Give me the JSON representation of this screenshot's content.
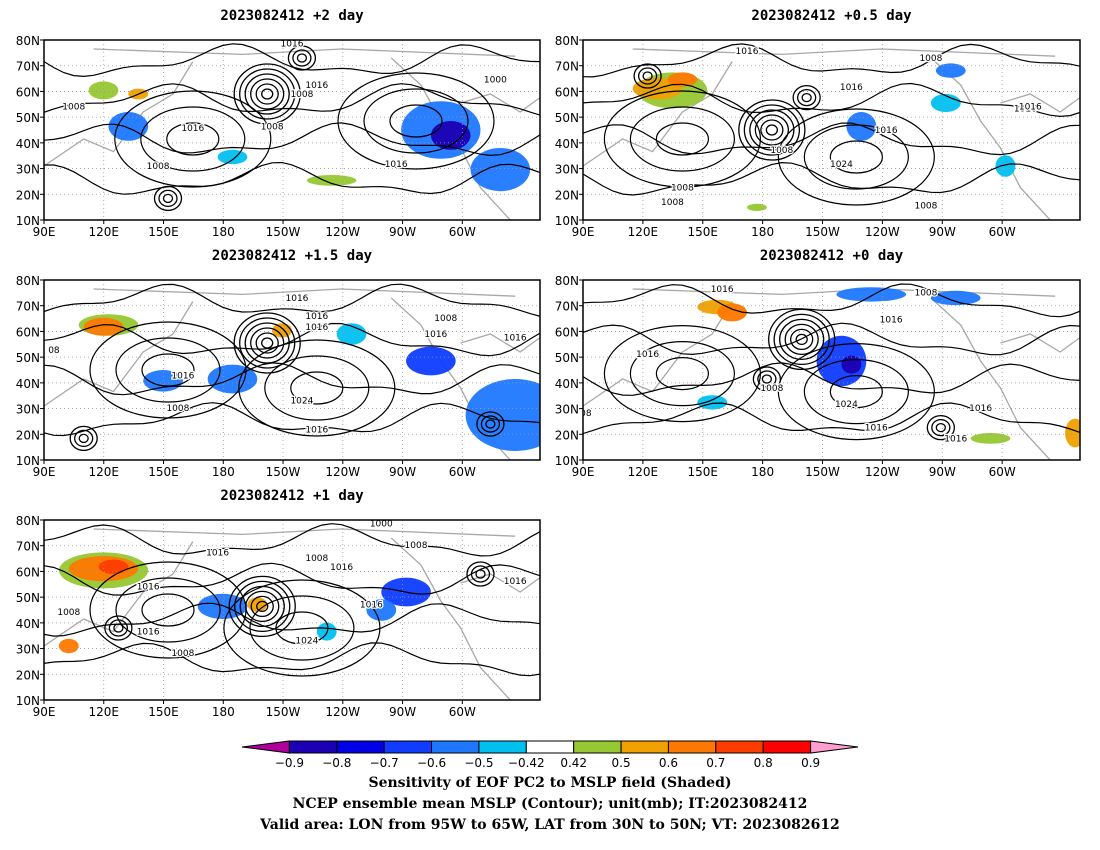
{
  "panels": [
    {
      "title": "2023082412 +2 day",
      "lat_ticks": [
        "80N",
        "70N",
        "60N",
        "50N",
        "40N",
        "30N",
        "20N",
        "10N"
      ],
      "lon_ticks": [
        "90E",
        "120E",
        "150E",
        "180",
        "150W",
        "120W",
        "90W",
        "60W"
      ],
      "contour_labels": [
        "1016",
        "1016",
        "1008",
        "1000",
        "1008",
        "1016",
        "1008",
        "1008",
        "1016"
      ]
    },
    {
      "title": "2023082412 +0.5 day",
      "lat_ticks": [
        "80N",
        "70N",
        "60N",
        "50N",
        "40N",
        "30N",
        "20N",
        "10N"
      ],
      "lon_ticks": [
        "90E",
        "120E",
        "150E",
        "180",
        "150W",
        "120W",
        "90W",
        "60W"
      ],
      "contour_labels": [
        "1016",
        "1008",
        "1016",
        "1016",
        "1016",
        "1008",
        "1024",
        "1008",
        "1008",
        "1008",
        "1016"
      ]
    },
    {
      "title": "2023082412 +1.5 day",
      "lat_ticks": [
        "80N",
        "70N",
        "60N",
        "50N",
        "40N",
        "30N",
        "20N",
        "10N"
      ],
      "lon_ticks": [
        "90E",
        "120E",
        "150E",
        "180",
        "150W",
        "120W",
        "90W",
        "60W"
      ],
      "contour_labels": [
        "1016",
        "1016",
        "1016",
        "1008",
        "1016",
        "1016",
        "08",
        "1016",
        "1008",
        "1024",
        "1016"
      ]
    },
    {
      "title": "2023082412 +0 day",
      "lat_ticks": [
        "80N",
        "70N",
        "60N",
        "50N",
        "40N",
        "30N",
        "20N",
        "10N"
      ],
      "lon_ticks": [
        "90E",
        "120E",
        "150E",
        "180",
        "150W",
        "120W",
        "90W",
        "60W"
      ],
      "contour_labels": [
        "1016",
        "1008",
        "1016",
        "1016",
        "1008",
        "1024",
        "1016",
        "1016",
        "1016",
        "008"
      ]
    },
    {
      "title": "2023082412 +1 day",
      "lat_ticks": [
        "80N",
        "70N",
        "60N",
        "50N",
        "40N",
        "30N",
        "20N",
        "10N"
      ],
      "lon_ticks": [
        "90E",
        "120E",
        "150E",
        "180",
        "150W",
        "120W",
        "90W",
        "60W"
      ],
      "contour_labels": [
        "1000",
        "1016",
        "1008",
        "1008",
        "1016",
        "1016",
        "1008",
        "1016",
        "1016",
        "1024",
        "1008",
        "1016"
      ]
    }
  ],
  "colorbar": {
    "tick_labels": [
      "−0.9",
      "−0.8",
      "−0.7",
      "−0.6",
      "−0.5",
      "−0.42",
      "0.42",
      "0.5",
      "0.6",
      "0.7",
      "0.8",
      "0.9"
    ],
    "colors": [
      "#b0009c",
      "#1c00b4",
      "#0000e6",
      "#0f3cff",
      "#1e78ff",
      "#00c0f0",
      "#ffffff",
      "#96c832",
      "#f0a000",
      "#ff7800",
      "#ff3c00",
      "#ff0000",
      "#ff9ecf"
    ]
  },
  "caption": {
    "line1": "Sensitivity of EOF PC2 to MSLP field (Shaded)",
    "line2": "NCEP ensemble mean MSLP (Contour); unit(mb); IT:2023082412",
    "line3": "Valid area: LON from 95W to 65W, LAT from 30N to 50N; VT: 2023082612"
  }
}
